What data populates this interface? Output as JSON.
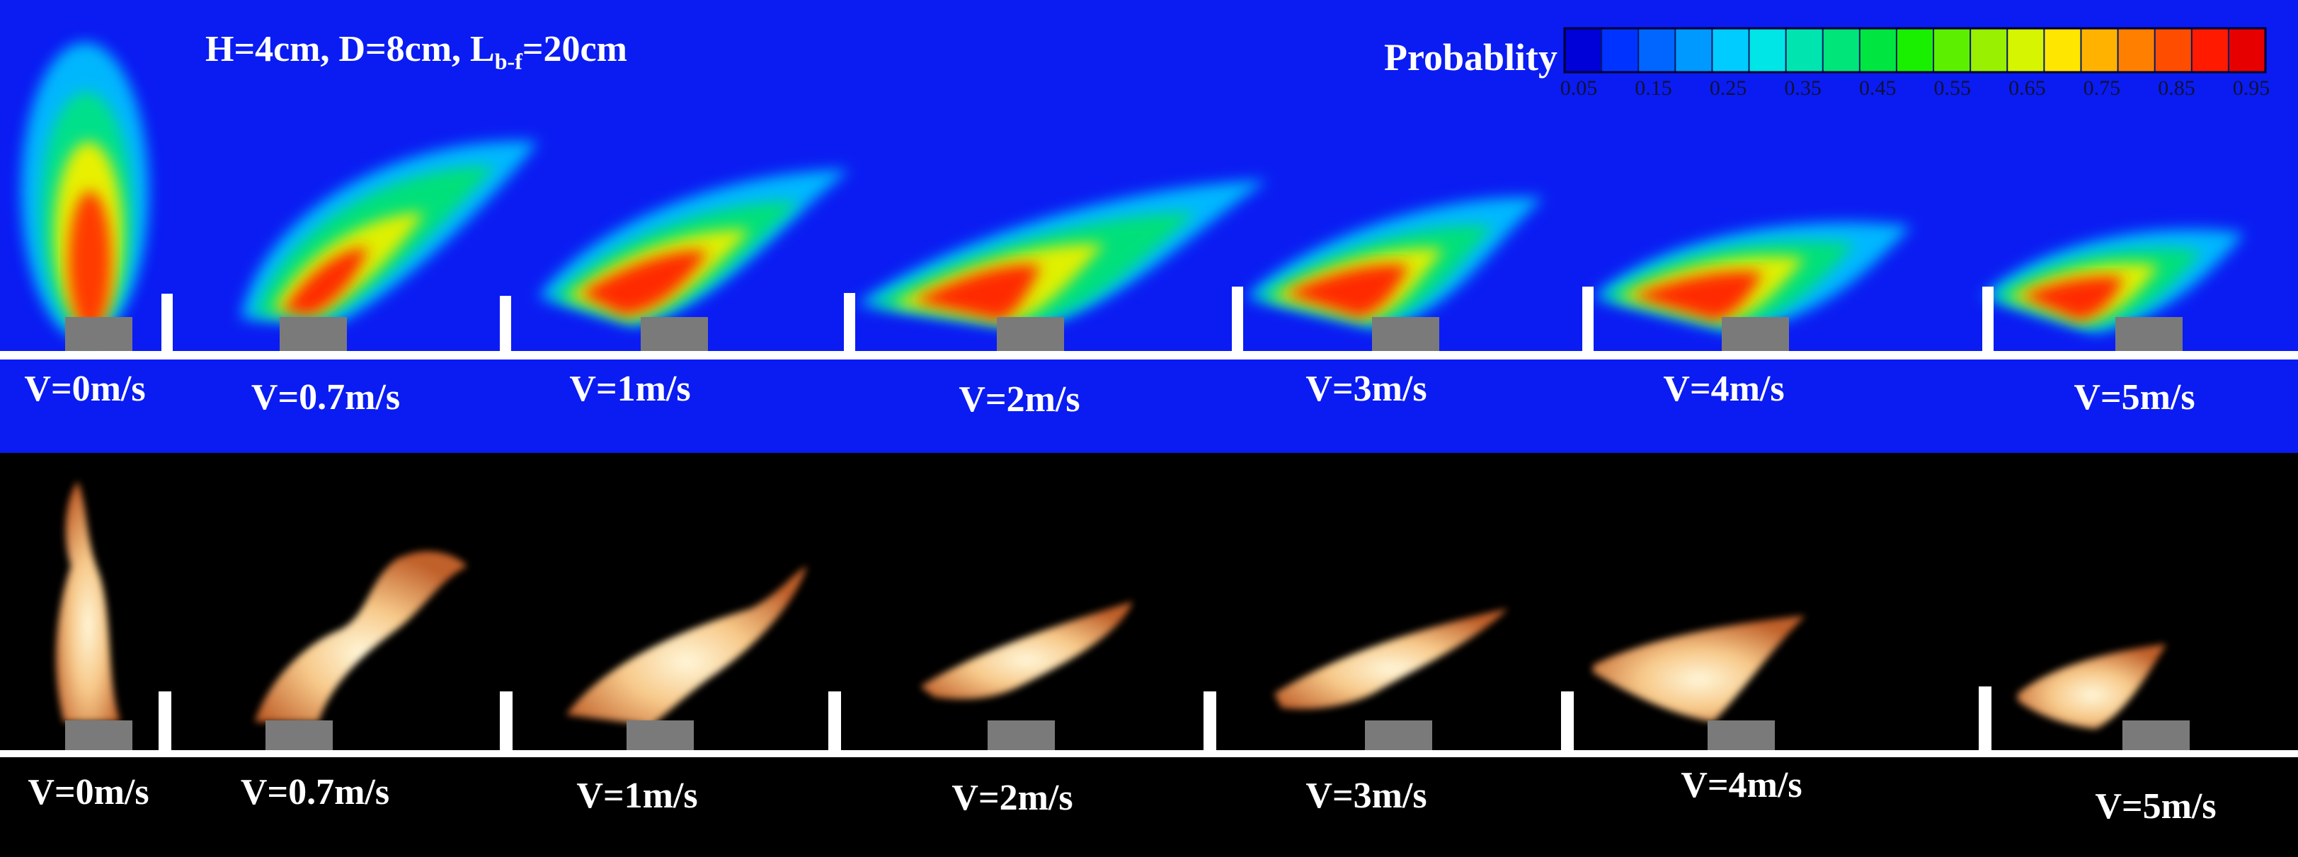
{
  "params": {
    "prefix": "H=4cm, D=8cm, L",
    "sub": "b-f",
    "suffix": "=20cm"
  },
  "colorbar": {
    "title": "Probablity",
    "ticks": [
      "0.05",
      "0.15",
      "0.25",
      "0.35",
      "0.45",
      "0.55",
      "0.65",
      "0.75",
      "0.85",
      "0.95"
    ],
    "colors": [
      "#0000d8",
      "#0033ff",
      "#0066ff",
      "#0099ff",
      "#00ccff",
      "#00e5e5",
      "#00e5b0",
      "#00e57a",
      "#00e540",
      "#19f000",
      "#5cf000",
      "#99f000",
      "#d6f500",
      "#ffe600",
      "#ffb300",
      "#ff8000",
      "#ff4d00",
      "#ff1a00",
      "#e60000"
    ]
  },
  "top_labels": [
    "V=0m/s",
    "V=0.7m/s",
    "V=1m/s",
    "V=2m/s",
    "V=3m/s",
    "V=4m/s",
    "V=5m/s"
  ],
  "bottom_labels": [
    "V=0m/s",
    "V=0.7m/s",
    "V=1m/s",
    "V=2m/s",
    "V=3m/s",
    "V=4m/s",
    "V=5m/s"
  ]
}
